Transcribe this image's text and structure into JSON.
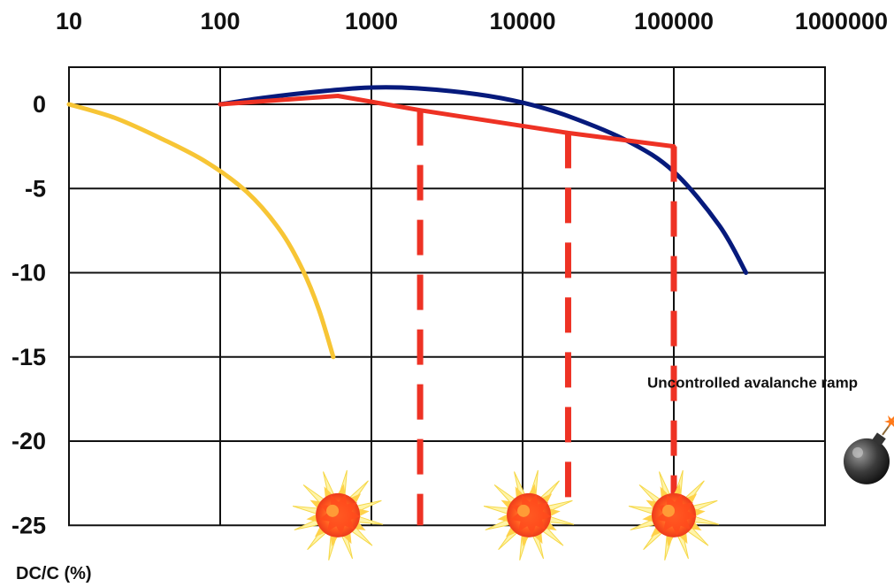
{
  "chart_data": {
    "type": "line",
    "title": "",
    "xlabel": "",
    "ylabel": "DC/C (%)",
    "x_scale": "log",
    "xlim": [
      10,
      1000000
    ],
    "ylim": [
      -25,
      2
    ],
    "x_ticks": [
      "10",
      "100",
      "1000",
      "10000",
      "100000",
      "1000000"
    ],
    "y_ticks": [
      "0",
      "-5",
      "-10",
      "-15",
      "-20",
      "-25"
    ],
    "grid": true,
    "series": [
      {
        "color": "#f7c535",
        "x": [
          10,
          20,
          40,
          80,
          150,
          250,
          350,
          450,
          560
        ],
        "y": [
          0,
          -0.8,
          -2.0,
          -3.4,
          -5.2,
          -7.5,
          -9.8,
          -12.2,
          -15
        ]
      },
      {
        "color": "#061a7c",
        "x": [
          100,
          200,
          500,
          1000,
          2000,
          5000,
          10000,
          20000,
          50000,
          100000,
          200000,
          300000
        ],
        "y": [
          0,
          0.4,
          0.8,
          1.0,
          0.95,
          0.6,
          0.1,
          -0.7,
          -2.2,
          -4.0,
          -7.2,
          -10
        ]
      },
      {
        "color": "#ee3224",
        "x": [
          100,
          600,
          2100,
          20000,
          100000
        ],
        "y": [
          0,
          0.5,
          -0.35,
          -1.7,
          -2.5
        ]
      }
    ],
    "drops": [
      {
        "x": 2100,
        "y_from": -0.35,
        "y_to": -25,
        "color": "#ee3224"
      },
      {
        "x": 20000,
        "y_from": -1.7,
        "y_to": -24,
        "color": "#ee3224"
      },
      {
        "x": 100000,
        "y_from": -2.5,
        "y_to": -25,
        "color": "#ee3224"
      }
    ],
    "explosions": [
      {
        "x": 600,
        "y": -24.4
      },
      {
        "x": 11000,
        "y": -24.4
      },
      {
        "x": 100000,
        "y": -24.4
      }
    ],
    "annotations": [
      {
        "text": "Uncontrolled avalanche ramp",
        "x": 100000,
        "y": -16.5,
        "color": "#ee3224"
      }
    ],
    "icons": [
      {
        "name": "bomb-icon",
        "x": 1000000,
        "y": -21.2
      }
    ]
  }
}
